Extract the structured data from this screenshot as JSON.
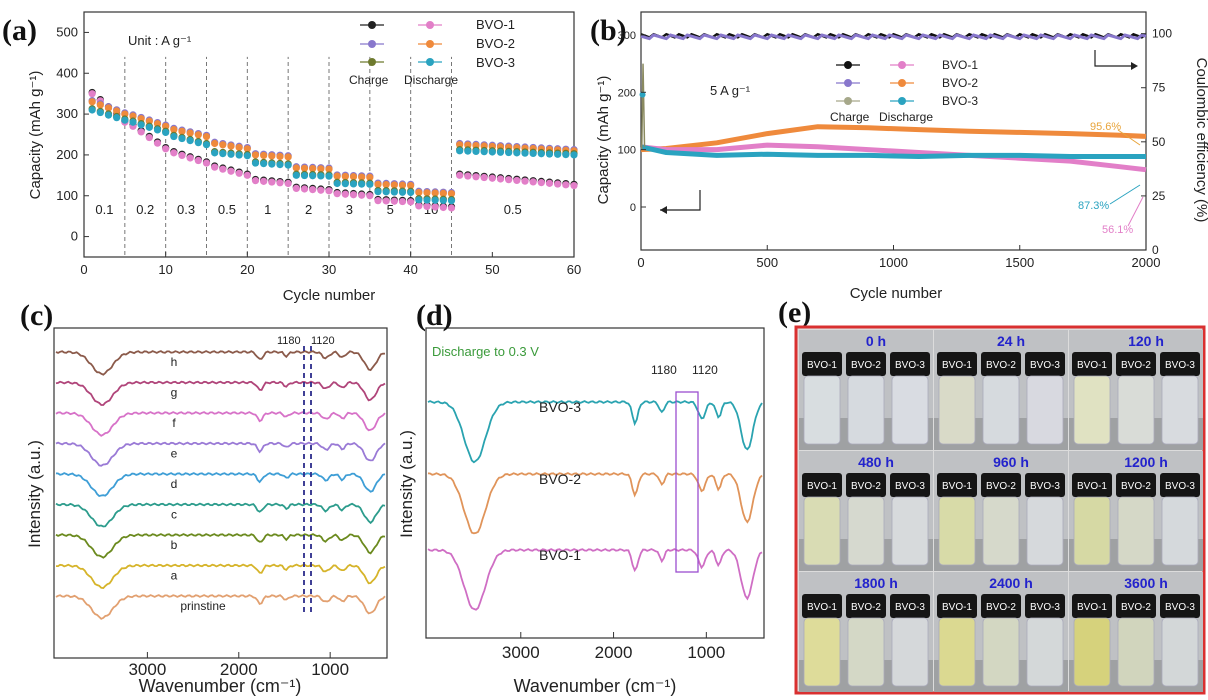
{
  "panels": {
    "a": "(a)",
    "b": "(b)",
    "c": "(c)",
    "d": "(d)",
    "e": "(e)"
  },
  "chart_data": [
    {
      "id": "a",
      "type": "scatter",
      "xlabel": "Cycle number",
      "ylabel": "Capacity (mAh g⁻¹)",
      "xlim": [
        0,
        60
      ],
      "ylim": [
        -50,
        550
      ],
      "xticks": [
        "0",
        "10",
        "20",
        "30",
        "40",
        "50",
        "60"
      ],
      "yticks": [
        "0",
        "100",
        "200",
        "300",
        "400",
        "500"
      ],
      "unit_note": "Unit : A g⁻¹",
      "rate_labels": [
        "0.1",
        "0.2",
        "0.3",
        "0.5",
        "1",
        "2",
        "3",
        "5",
        "10",
        "0.5"
      ],
      "rate_dividers": [
        5,
        10,
        15,
        20,
        25,
        30,
        35,
        40,
        45
      ],
      "legend": {
        "charge": "Charge",
        "discharge": "Discharge",
        "names": [
          "BVO-1",
          "BVO-2",
          "BVO-3"
        ]
      },
      "colors": {
        "BVO-1": {
          "charge": "#222222",
          "discharge": "#e27fc8"
        },
        "BVO-2": {
          "charge": "#8877cc",
          "discharge": "#ef8a3c"
        },
        "BVO-3": {
          "charge": "#6e7a2e",
          "discharge": "#2aa3c0"
        }
      },
      "series": [
        {
          "name": "BVO-1",
          "steps": [
            [
              1,
              5,
              350,
              280
            ],
            [
              6,
              10,
              270,
              215
            ],
            [
              11,
              15,
              205,
              180
            ],
            [
              16,
              20,
              170,
              150
            ],
            [
              21,
              25,
              137,
              130
            ],
            [
              26,
              30,
              118,
              112
            ],
            [
              31,
              35,
              105,
              100
            ],
            [
              36,
              40,
              88,
              85
            ],
            [
              41,
              45,
              75,
              70
            ],
            [
              46,
              60,
              150,
              125
            ]
          ]
        },
        {
          "name": "BVO-2",
          "steps": [
            [
              1,
              5,
              330,
              300
            ],
            [
              6,
              10,
              295,
              270
            ],
            [
              11,
              15,
              262,
              245
            ],
            [
              16,
              20,
              228,
              215
            ],
            [
              21,
              25,
              200,
              195
            ],
            [
              26,
              30,
              168,
              165
            ],
            [
              31,
              35,
              148,
              145
            ],
            [
              36,
              40,
              128,
              125
            ],
            [
              41,
              45,
              108,
              105
            ],
            [
              46,
              60,
              225,
              210
            ]
          ]
        },
        {
          "name": "BVO-3",
          "steps": [
            [
              1,
              5,
              310,
              285
            ],
            [
              6,
              10,
              280,
              255
            ],
            [
              11,
              15,
              245,
              225
            ],
            [
              16,
              20,
              205,
              198
            ],
            [
              21,
              25,
              180,
              175
            ],
            [
              26,
              30,
              150,
              148
            ],
            [
              31,
              35,
              130,
              128
            ],
            [
              36,
              40,
              110,
              108
            ],
            [
              41,
              45,
              90,
              88
            ],
            [
              46,
              60,
              210,
              200
            ]
          ]
        }
      ]
    },
    {
      "id": "b",
      "type": "line",
      "xlabel": "Cycle number",
      "ylabel": "Capacity (mAh g⁻¹)",
      "y2label": "Coulombic efficiency (%)",
      "xlim": [
        0,
        2000
      ],
      "ylim": [
        -75,
        340
      ],
      "y2lim": [
        0,
        110
      ],
      "xticks": [
        "0",
        "500",
        "1000",
        "1500",
        "2000"
      ],
      "yticks": [
        "0",
        "100",
        "200",
        "300"
      ],
      "y2ticks": [
        "0",
        "25",
        "50",
        "75",
        "100"
      ],
      "rate_note": "5 A g⁻¹",
      "legend": {
        "charge": "Charge",
        "discharge": "Discharge",
        "names": [
          "BVO-1",
          "BVO-2",
          "BVO-3"
        ]
      },
      "retention": [
        {
          "name": "BVO-2",
          "text": "95.6%",
          "color": "#e8a43a"
        },
        {
          "name": "BVO-3",
          "text": "87.3%",
          "color": "#2aa3c0"
        },
        {
          "name": "BVO-1",
          "text": "56.1%",
          "color": "#e27fc8"
        }
      ],
      "series": [
        {
          "name": "BVO-2",
          "color": "#ef8a3c",
          "x": [
            0,
            100,
            300,
            500,
            700,
            900,
            1100,
            1300,
            1500,
            1700,
            1900,
            2000
          ],
          "values": [
            100,
            102,
            112,
            128,
            140,
            138,
            135,
            132,
            130,
            128,
            125,
            123
          ]
        },
        {
          "name": "BVO-1",
          "color": "#e27fc8",
          "x": [
            0,
            100,
            300,
            500,
            700,
            900,
            1100,
            1300,
            1500,
            1700,
            1900,
            2000
          ],
          "values": [
            105,
            100,
            100,
            108,
            105,
            100,
            95,
            90,
            85,
            80,
            70,
            65
          ]
        },
        {
          "name": "BVO-3",
          "color": "#2aa3c0",
          "x": [
            0,
            100,
            300,
            500,
            700,
            900,
            1100,
            1300,
            1500,
            1700,
            1900,
            2000
          ],
          "values": [
            105,
            95,
            90,
            92,
            90,
            90,
            88,
            90,
            90,
            88,
            88,
            88
          ]
        }
      ],
      "ce": 99
    },
    {
      "id": "c",
      "type": "line",
      "xlabel": "Wavenumber (cm⁻¹)",
      "ylabel": "Intensity (a.u.)",
      "xlim": [
        4000,
        400
      ],
      "xticks": [
        "3000",
        "2000",
        "1000"
      ],
      "markers": [
        "1180",
        "1120"
      ],
      "curves": [
        {
          "label": "h",
          "color": "#8b5a4a"
        },
        {
          "label": "g",
          "color": "#b0457a"
        },
        {
          "label": "f",
          "color": "#d772c8"
        },
        {
          "label": "e",
          "color": "#9a7ad6"
        },
        {
          "label": "d",
          "color": "#3e9ed6"
        },
        {
          "label": "c",
          "color": "#2c9c8c"
        },
        {
          "label": "b",
          "color": "#6b8a1e"
        },
        {
          "label": "a",
          "color": "#d6b42a"
        },
        {
          "label": "prinstine",
          "color": "#e2a070"
        }
      ]
    },
    {
      "id": "d",
      "type": "line",
      "xlabel": "Wavenumber (cm⁻¹)",
      "ylabel": "Intensity (a.u.)",
      "xlim": [
        4000,
        400
      ],
      "xticks": [
        "3000",
        "2000",
        "1000"
      ],
      "note": "Discharge to 0.3 V",
      "markers": [
        "1180",
        "1120"
      ],
      "curves": [
        {
          "label": "BVO-3",
          "color": "#2aa3b0"
        },
        {
          "label": "BVO-2",
          "color": "#e0945a"
        },
        {
          "label": "BVO-1",
          "color": "#cf6ec4"
        }
      ]
    }
  ],
  "photos": {
    "frame_color": "#d93030",
    "cells": [
      {
        "time": "0 h",
        "liquids": [
          "#d8dde0",
          "#d6dadf",
          "#d9dce2"
        ]
      },
      {
        "time": "24 h",
        "liquids": [
          "#d9dac8",
          "#d6dade",
          "#d8d9e0"
        ]
      },
      {
        "time": "120 h",
        "liquids": [
          "#e0e2c2",
          "#d9dcd7",
          "#d8dbdf"
        ]
      },
      {
        "time": "480 h",
        "liquids": [
          "#d9dcb4",
          "#d6d9cf",
          "#d7dadc"
        ]
      },
      {
        "time": "960 h",
        "liquids": [
          "#d8dba8",
          "#d6d9cb",
          "#d6d9dc"
        ]
      },
      {
        "time": "1200 h",
        "liquids": [
          "#d6d9a4",
          "#d5d8c7",
          "#d5d9dc"
        ]
      },
      {
        "time": "1800 h",
        "liquids": [
          "#dedc9a",
          "#d4d8c6",
          "#d5d8da"
        ]
      },
      {
        "time": "2400 h",
        "liquids": [
          "#dbd991",
          "#d3d7c2",
          "#d4d8d9"
        ]
      },
      {
        "time": "3600 h",
        "liquids": [
          "#d6d27c",
          "#d1d5bd",
          "#d3d7d8"
        ]
      }
    ],
    "vial_labels": [
      "BVO-1",
      "BVO-2",
      "BVO-3"
    ]
  }
}
